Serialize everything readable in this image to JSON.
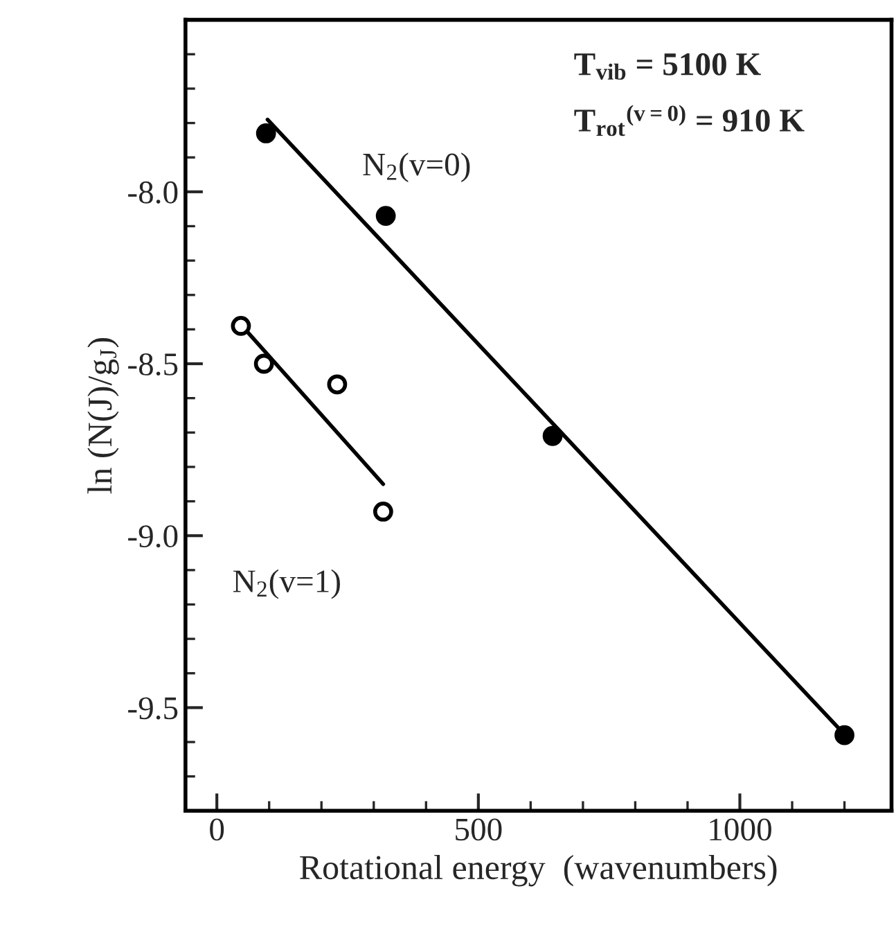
{
  "chart_data": {
    "type": "scatter",
    "xlabel": "Rotational energy  (wavenumbers)",
    "ylabel": "ln (N(J)/g$_{J}$)",
    "annotations": [
      "T$_{vib}$ = 5100 K",
      "T$_{rot}$$^{(v=0)}$ = 910 K"
    ],
    "series": [
      {
        "name": "N$_{2}$(v=0)",
        "marker": "circle",
        "color": "#000000",
        "x": [
          94,
          323,
          642,
          1200
        ],
        "values": [
          -7.83,
          -8.07,
          -8.71,
          -9.58
        ]
      },
      {
        "type": "line",
        "color": "#000000",
        "x": [
          97,
          1189
        ],
        "values": [
          -7.79,
          -9.56
        ]
      },
      {
        "name": "N$_{2}$(v=1)",
        "marker": "circle",
        "color": "#000000",
        "x": [
          46,
          90,
          230,
          318
        ],
        "values": [
          -8.39,
          -8.5,
          -8.56,
          -8.93
        ]
      },
      {
        "type": "line",
        "color": "#000000",
        "x": [
          60,
          318
        ],
        "values": [
          -8.41,
          -8.85
        ]
      }
    ],
    "xlim": [
      -60,
      1290
    ],
    "ylim": [
      -9.8,
      -7.5
    ],
    "xticks": [
      0,
      {
        "value": 100,
        "label": null
      },
      {
        "value": 200,
        "label": null
      },
      {
        "value": 300,
        "label": null
      },
      {
        "value": 400,
        "label": null
      },
      500,
      {
        "value": 600,
        "label": null
      },
      {
        "value": 700,
        "label": null
      },
      {
        "value": 800,
        "label": null
      },
      {
        "value": 900,
        "label": null
      },
      1000,
      {
        "value": 1100,
        "label": null
      },
      {
        "value": 1200,
        "label": null
      }
    ],
    "yticks": [
      {
        "value": -9.7,
        "label": null
      },
      {
        "value": -9.6,
        "label": null
      },
      {
        "value": -9.5,
        "label": "-9.5"
      },
      {
        "value": -9.4,
        "label": null
      },
      {
        "value": -9.3,
        "label": null
      },
      {
        "value": -9.2,
        "label": null
      },
      {
        "value": -9.1,
        "label": null
      },
      {
        "value": -9.0,
        "label": "-9.0"
      },
      {
        "value": -8.9,
        "label": null
      },
      {
        "value": -8.8,
        "label": null
      },
      {
        "value": -8.7,
        "label": null
      },
      {
        "value": -8.6,
        "label": null
      },
      {
        "value": -8.5,
        "label": "-8.5"
      },
      {
        "value": -8.4,
        "label": null
      },
      {
        "value": -8.3,
        "label": null
      },
      {
        "value": -8.2,
        "label": null
      },
      {
        "value": -8.1,
        "label": null
      },
      {
        "value": -8.0,
        "label": "-8.0"
      },
      {
        "value": -7.9,
        "label": null
      },
      {
        "value": -7.8,
        "label": null
      },
      {
        "value": -7.7,
        "label": null
      },
      {
        "value": -7.6,
        "label": null
      }
    ],
    "grid": false,
    "legend": false
  }
}
